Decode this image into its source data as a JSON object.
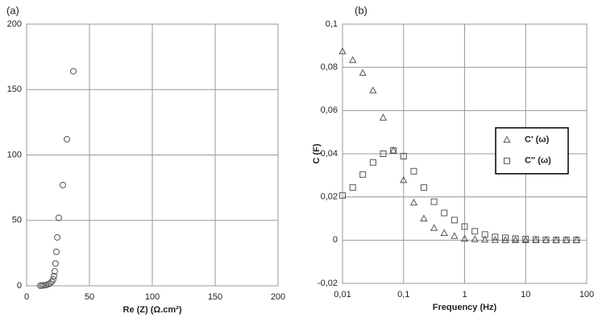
{
  "chart_data": [
    {
      "type": "scatter",
      "panel_label": "(a)",
      "x_label": "Re (Z) (Ω.cm²)",
      "xlim": [
        0,
        200
      ],
      "xticks": [
        0,
        50,
        100,
        150,
        200
      ],
      "ylim": [
        0,
        200
      ],
      "yticks": [
        0,
        50,
        100,
        150,
        200
      ],
      "grid": true,
      "x": [
        37.2,
        32.1,
        28.8,
        25.6,
        24.4,
        23.7,
        23.0,
        22.4,
        21.8,
        21.2,
        19.9,
        18.6,
        17.3,
        15.4,
        13.5,
        12.2,
        10.9
      ],
      "values": [
        164,
        112,
        77,
        52,
        37,
        26,
        17,
        11,
        7.4,
        4.9,
        3,
        1.8,
        1.2,
        0.6,
        0.3,
        0.2,
        0.1
      ],
      "marker": "circle",
      "color": "#555555"
    },
    {
      "type": "scatter",
      "panel_label": "(b)",
      "x_label": "Frequency (Hz)",
      "y_label": "C (F)",
      "xscale": "log",
      "xlim": [
        0.01,
        100
      ],
      "xticks": [
        {
          "value": 0.01,
          "label": "0,01"
        },
        {
          "value": 0.1,
          "label": "0,1"
        },
        1,
        10,
        100
      ],
      "ylim": [
        -0.02,
        0.1
      ],
      "yticks": [
        {
          "value": -0.02,
          "label": "-0,02"
        },
        0,
        {
          "value": 0.02,
          "label": "0,02"
        },
        {
          "value": 0.04,
          "label": "0,04"
        },
        {
          "value": 0.06,
          "label": "0,06"
        },
        {
          "value": 0.08,
          "label": "0,08"
        },
        {
          "value": 0.1,
          "label": "0,1"
        }
      ],
      "grid": true,
      "legend": "right",
      "x": [
        0.01,
        0.0147,
        0.0215,
        0.0316,
        0.0464,
        0.0681,
        0.1,
        0.147,
        0.215,
        0.316,
        0.464,
        0.681,
        1,
        1.47,
        2.15,
        3.16,
        4.64,
        6.81,
        10,
        14.7,
        21.5,
        31.6,
        46.4,
        68.1
      ],
      "series": [
        {
          "name": "C' (ω)",
          "marker": "triangle",
          "color": "#555555",
          "values": [
            0.0874,
            0.0833,
            0.0774,
            0.0693,
            0.0567,
            0.0415,
            0.0278,
            0.0174,
            0.01,
            0.0056,
            0.0033,
            0.0019,
            0.0007,
            0.0004,
            0.0002,
            0.0001,
            0,
            0,
            0,
            0,
            0,
            0,
            0,
            0
          ]
        },
        {
          "name": "C'' (ω)",
          "marker": "square",
          "color": "#555555",
          "values": [
            0.0207,
            0.0244,
            0.0304,
            0.036,
            0.04,
            0.0415,
            0.0389,
            0.0319,
            0.0244,
            0.0178,
            0.0126,
            0.0093,
            0.0063,
            0.0041,
            0.0026,
            0.0015,
            0.0011,
            0.0007,
            0.0005,
            0.0003,
            0.0002,
            0.0001,
            0.0001,
            0.0001
          ]
        }
      ]
    }
  ]
}
